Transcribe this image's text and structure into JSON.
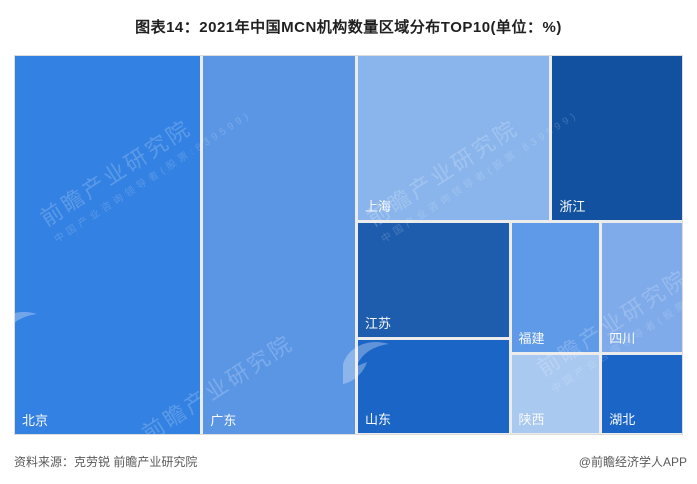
{
  "title": "图表14：2021年中国MCN机构数量区域分布TOP10(单位：%)",
  "footer": {
    "source": "资料来源：克劳锐 前瞻产业研究院",
    "brand": "@前瞻经济学人APP"
  },
  "watermark": {
    "text": "前瞻产业研究院",
    "subtext": "中国产业咨询领导者(股票:839599)",
    "logo_name": "qianzhan-swoosh-logo"
  },
  "chart_data": {
    "type": "treemap",
    "title": "图表14：2021年中国MCN机构数量区域分布TOP10(单位：%)",
    "unit": "%",
    "legend_position": "none",
    "categories": [
      "北京",
      "广东",
      "上海",
      "浙江",
      "江苏",
      "山东",
      "福建",
      "四川",
      "陕西",
      "湖北"
    ],
    "values_estimated_pct": [
      28.5,
      23.3,
      12.8,
      8.7,
      7.0,
      5.7,
      4.6,
      4.2,
      2.8,
      2.5
    ],
    "cells": [
      {
        "name": "北京",
        "id": "beijing",
        "value_pct": 28.5,
        "color": "#3381e2",
        "l": 0,
        "t": 0,
        "w": 27.8,
        "h": 100
      },
      {
        "name": "广东",
        "id": "guangdong",
        "value_pct": 23.3,
        "color": "#5b96e5",
        "l": 28.25,
        "t": 0,
        "w": 22.72,
        "h": 100
      },
      {
        "name": "上海",
        "id": "shanghai",
        "value_pct": 12.8,
        "color": "#8ab5ec",
        "l": 51.42,
        "t": 0,
        "w": 28.7,
        "h": 43.42
      },
      {
        "name": "浙江",
        "id": "zhejiang",
        "value_pct": 8.7,
        "color": "#11519f",
        "l": 80.57,
        "t": 0,
        "w": 19.43,
        "h": 43.42
      },
      {
        "name": "江苏",
        "id": "jiangsu",
        "value_pct": 7.0,
        "color": "#1e5dad",
        "l": 51.42,
        "t": 44.21,
        "w": 22.57,
        "h": 30.26
      },
      {
        "name": "山东",
        "id": "shandong",
        "value_pct": 5.7,
        "color": "#1b65c7",
        "l": 51.42,
        "t": 75.26,
        "w": 22.57,
        "h": 24.47
      },
      {
        "name": "福建",
        "id": "fujian",
        "value_pct": 4.6,
        "color": "#5e9ae8",
        "l": 74.44,
        "t": 44.21,
        "w": 13.15,
        "h": 34.21
      },
      {
        "name": "四川",
        "id": "sichuan",
        "value_pct": 4.2,
        "color": "#7fabea",
        "l": 88.04,
        "t": 44.21,
        "w": 11.96,
        "h": 34.21
      },
      {
        "name": "陕西",
        "id": "shaanxi",
        "value_pct": 2.8,
        "color": "#a9c9f1",
        "l": 74.44,
        "t": 79.21,
        "w": 13.15,
        "h": 20.53
      },
      {
        "name": "湖北",
        "id": "hubei",
        "value_pct": 2.5,
        "color": "#1b65c7",
        "l": 88.04,
        "t": 79.21,
        "w": 11.96,
        "h": 20.53
      }
    ]
  }
}
